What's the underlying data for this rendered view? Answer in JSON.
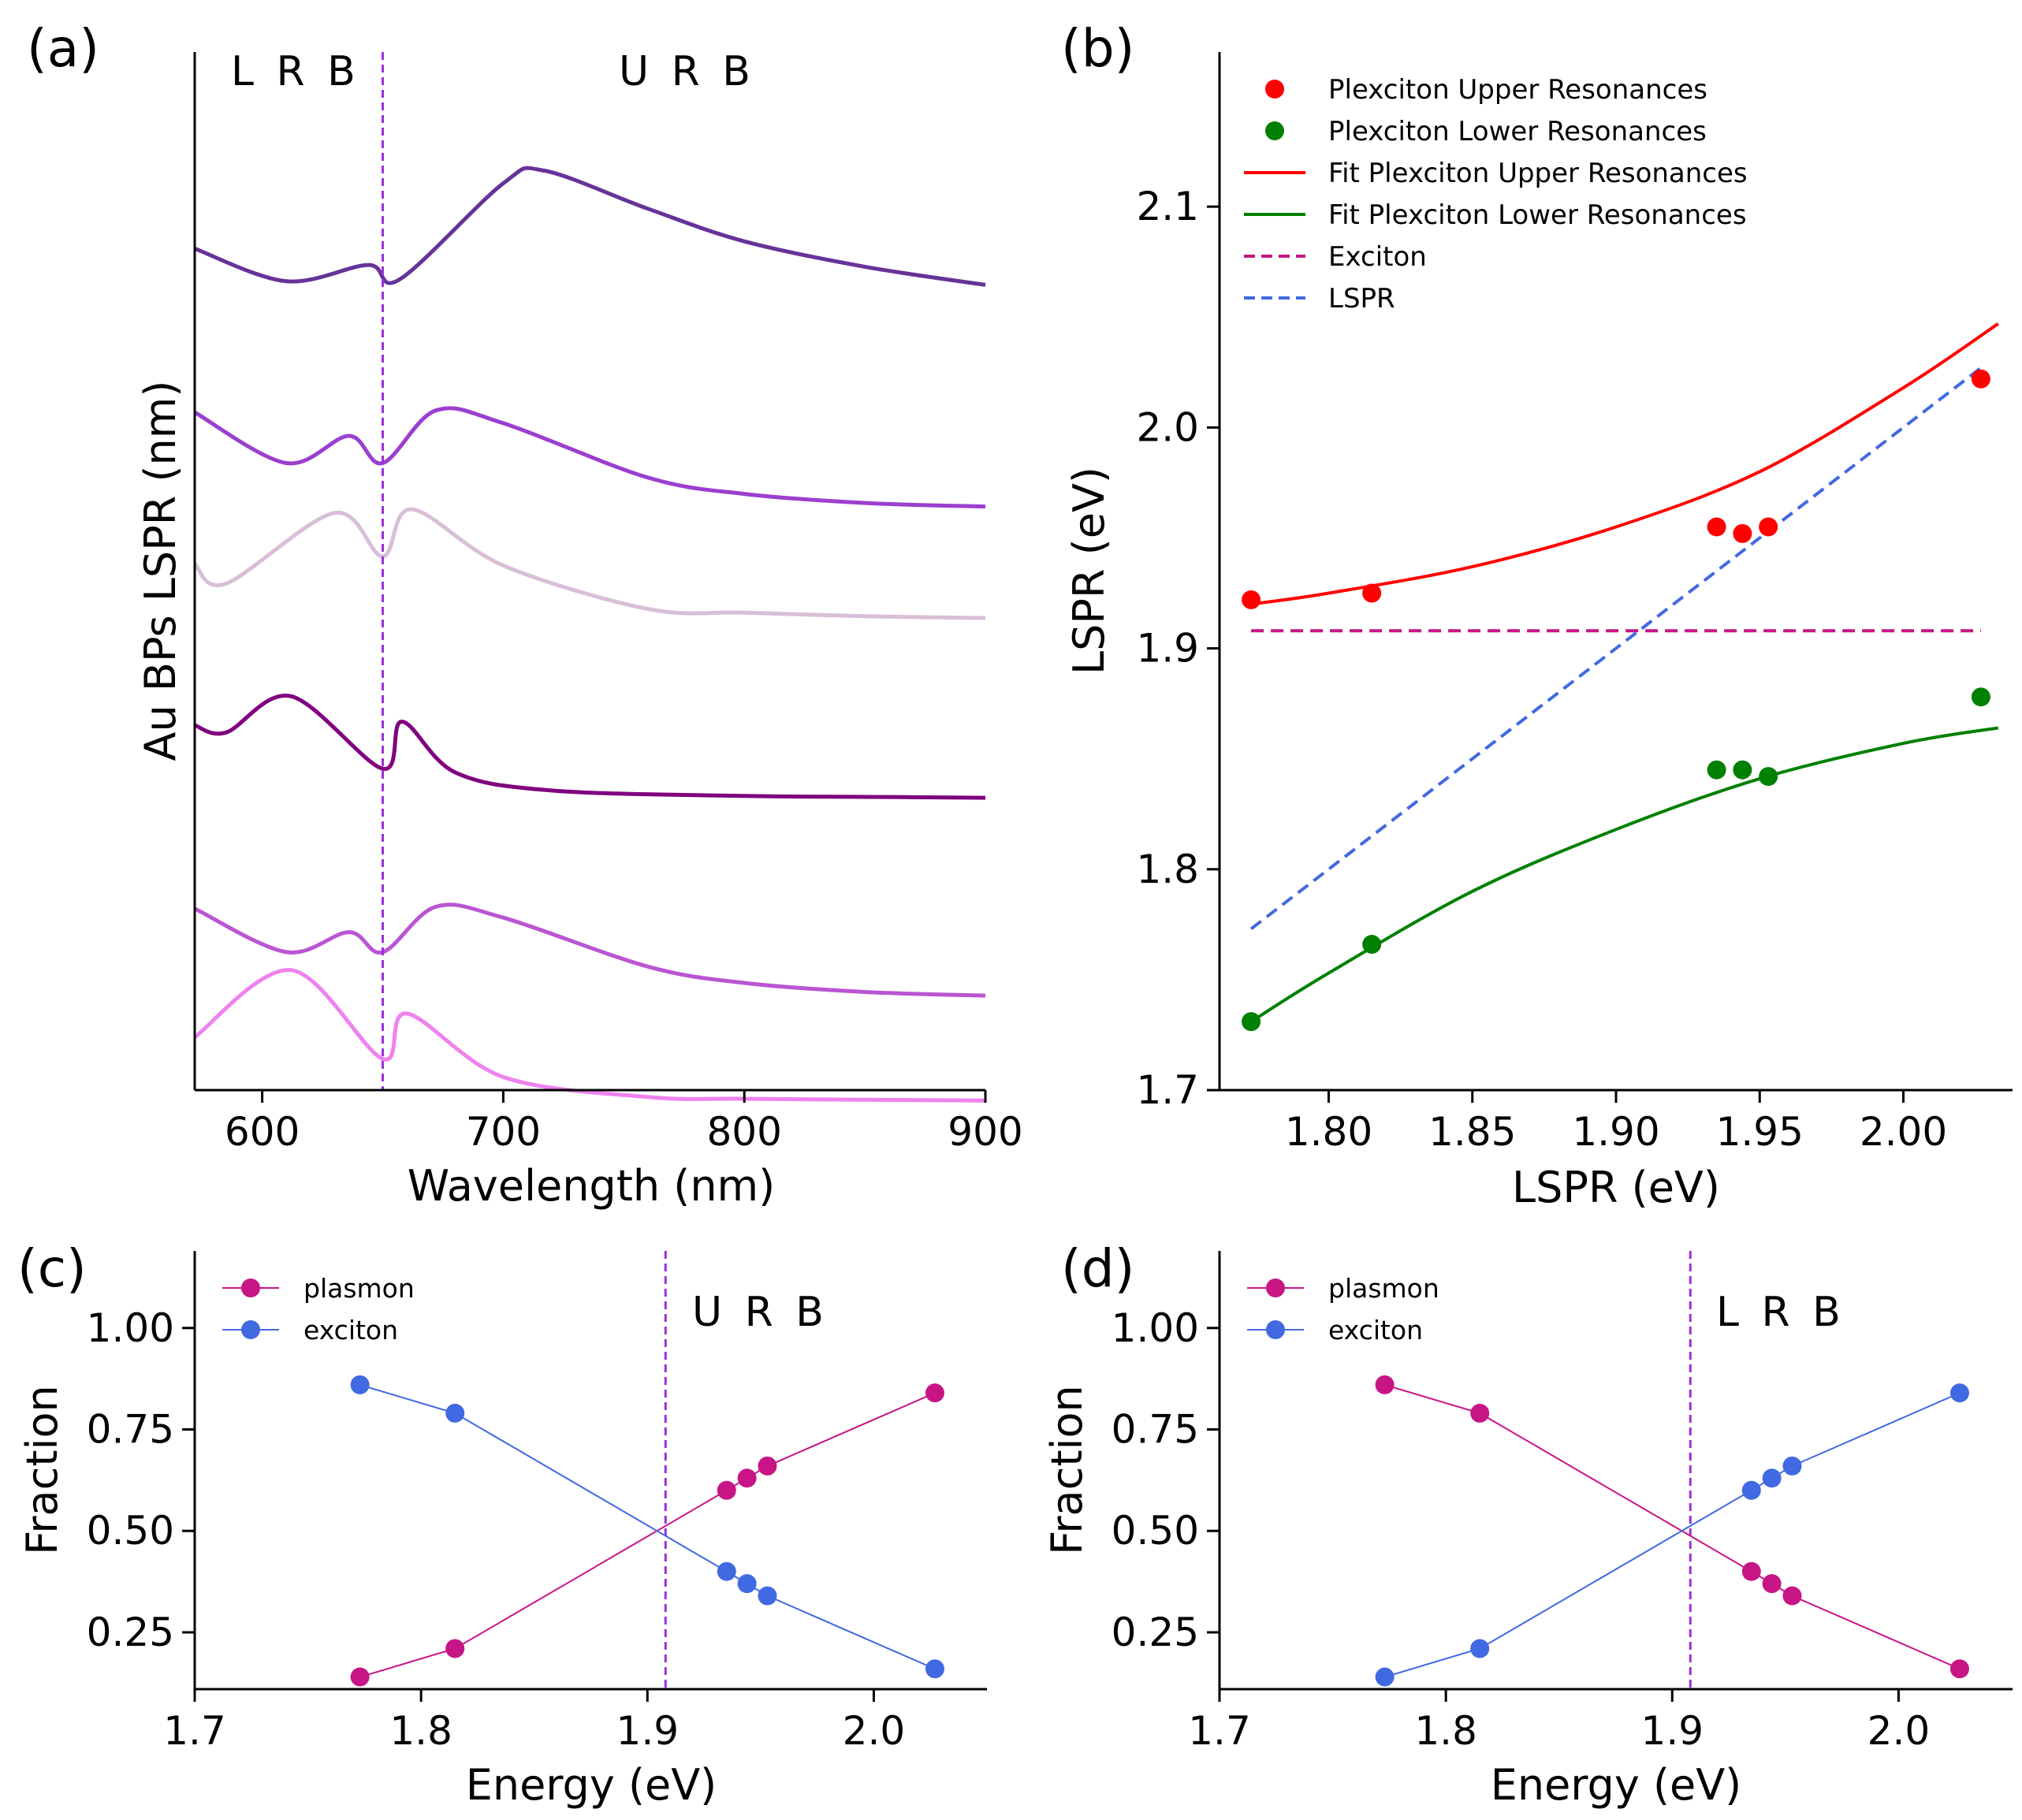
{
  "panels": {
    "a": {
      "label": "(a)",
      "region_labels": [
        "L R B",
        "U R B"
      ],
      "xlabel": "Wavelength (nm)",
      "ylabel": "Au BPs LSPR (nm)",
      "xlim": [
        572,
        900
      ],
      "xticks": [
        "600",
        "700",
        "800",
        "900"
      ],
      "exciton_line_nm": 650,
      "colors": {
        "exciton_line": "#9b30d9"
      }
    },
    "b": {
      "label": "(b)",
      "xlabel": "LSPR (eV)",
      "ylabel": "LSPR (eV)",
      "xticks": [
        "1.80",
        "1.85",
        "1.90",
        "1.95",
        "2.00"
      ],
      "yticks": [
        "1.7",
        "1.8",
        "1.9",
        "2.0",
        "2.1"
      ],
      "legend": [
        "Plexciton Upper Resonances",
        "Plexciton Lower Resonances",
        "Fit Plexciton Upper Resonances",
        "Fit Plexciton Lower Resonances",
        "Exciton",
        "LSPR"
      ]
    },
    "c": {
      "label": "(c)",
      "region_label": "U R B",
      "xlabel": "Energy (eV)",
      "ylabel": "Fraction",
      "xticks": [
        "1.7",
        "1.8",
        "1.9",
        "2.0"
      ],
      "yticks": [
        "0.25",
        "0.50",
        "0.75",
        "1.00"
      ],
      "legend": [
        "plasmon",
        "exciton"
      ]
    },
    "d": {
      "label": "(d)",
      "region_label": "L R B",
      "xlabel": "Energy (eV)",
      "ylabel": "Fraction",
      "xticks": [
        "1.7",
        "1.8",
        "1.9",
        "2.0"
      ],
      "yticks": [
        "0.25",
        "0.50",
        "0.75",
        "1.00"
      ],
      "legend": [
        "plasmon",
        "exciton"
      ]
    }
  },
  "chart_data": [
    {
      "panel": "a",
      "type": "line",
      "title": "",
      "xlabel": "Wavelength (nm)",
      "ylabel": "Au BPs LSPR (nm)",
      "xlim": [
        572,
        900
      ],
      "y_ticks_shown": false,
      "exciton_dip_nm": 650,
      "series": [
        {
          "name": "spectrum 1 (top)",
          "color": "#663399",
          "x": [
            572,
            610,
            644,
            657,
            700,
            717,
            760,
            800,
            850,
            900
          ],
          "y": [
            0.82,
            0.64,
            0.73,
            0.65,
            1.18,
            1.25,
            1.04,
            0.86,
            0.72,
            0.62
          ]
        },
        {
          "name": "spectrum 2",
          "color": "#9b3fd0",
          "x": [
            572,
            610,
            636,
            650,
            672,
            700,
            760,
            800,
            850,
            900
          ],
          "y": [
            0.83,
            0.55,
            0.7,
            0.55,
            0.84,
            0.77,
            0.47,
            0.38,
            0.33,
            0.31
          ]
        },
        {
          "name": "spectrum 3",
          "color": "#d8bfd8",
          "x": [
            572,
            585,
            630,
            650,
            662,
            700,
            760,
            800,
            850,
            900
          ],
          "y": [
            0.93,
            0.82,
            1.21,
            0.97,
            1.23,
            0.92,
            0.68,
            0.66,
            0.64,
            0.63
          ]
        },
        {
          "name": "spectrum 4",
          "color": "#800080",
          "x": [
            572,
            585,
            612,
            650,
            658,
            680,
            720,
            800,
            850,
            900
          ],
          "y": [
            0.93,
            0.89,
            1.09,
            0.69,
            0.95,
            0.67,
            0.57,
            0.54,
            0.535,
            0.53
          ]
        },
        {
          "name": "spectrum 5",
          "color": "#ba55d3",
          "x": [
            572,
            610,
            636,
            650,
            672,
            700,
            760,
            800,
            850,
            900
          ],
          "y": [
            0.81,
            0.57,
            0.68,
            0.57,
            0.82,
            0.76,
            0.49,
            0.4,
            0.35,
            0.33
          ]
        },
        {
          "name": "spectrum 6 (bottom)",
          "color": "#ee82ee",
          "x": [
            572,
            612,
            650,
            660,
            700,
            760,
            800,
            850,
            900
          ],
          "y": [
            0.84,
            1.21,
            0.72,
            0.97,
            0.62,
            0.51,
            0.5,
            0.495,
            0.49
          ]
        }
      ]
    },
    {
      "panel": "b",
      "type": "scatter",
      "title": "",
      "xlabel": "LSPR (eV)",
      "ylabel": "LSPR (eV)",
      "xlim": [
        1.762,
        2.038
      ],
      "ylim": [
        1.7,
        2.17
      ],
      "series": [
        {
          "name": "Plexciton Upper Resonances",
          "kind": "scatter",
          "color": "#ff0000",
          "x": [
            1.773,
            1.815,
            1.935,
            1.944,
            1.953,
            2.027
          ],
          "y": [
            1.922,
            1.925,
            1.955,
            1.952,
            1.955,
            2.022
          ]
        },
        {
          "name": "Plexciton Lower Resonances",
          "kind": "scatter",
          "color": "#008000",
          "x": [
            1.773,
            1.815,
            1.935,
            1.944,
            1.953,
            2.027
          ],
          "y": [
            1.731,
            1.766,
            1.845,
            1.845,
            1.842,
            1.878
          ]
        },
        {
          "name": "Fit Plexciton Upper Resonances",
          "kind": "line",
          "color": "#ff0000",
          "x": [
            1.773,
            1.8,
            1.85,
            1.9,
            1.95,
            2.0,
            2.033
          ],
          "y": [
            1.92,
            1.925,
            1.937,
            1.955,
            1.98,
            2.018,
            2.047
          ]
        },
        {
          "name": "Fit Plexciton Lower Resonances",
          "kind": "line",
          "color": "#008000",
          "x": [
            1.773,
            1.8,
            1.85,
            1.9,
            1.95,
            2.0,
            2.033
          ],
          "y": [
            1.731,
            1.753,
            1.79,
            1.818,
            1.841,
            1.857,
            1.864
          ]
        },
        {
          "name": "Exciton",
          "kind": "dashed",
          "color": "#c71585",
          "x": [
            1.773,
            2.027
          ],
          "y": [
            1.908,
            1.908
          ]
        },
        {
          "name": "LSPR",
          "kind": "dashed",
          "color": "#4169e1",
          "x": [
            1.773,
            2.027
          ],
          "y": [
            1.773,
            2.027
          ]
        }
      ]
    },
    {
      "panel": "c",
      "type": "line",
      "title": "",
      "xlabel": "Energy (eV)",
      "ylabel": "Fraction",
      "xlim": [
        1.7,
        2.05
      ],
      "ylim": [
        0.11,
        1.19
      ],
      "vline_x": 1.908,
      "x": [
        1.773,
        1.815,
        1.935,
        1.944,
        1.953,
        2.027
      ],
      "series": [
        {
          "name": "plasmon",
          "color": "#c71585",
          "values": [
            0.14,
            0.21,
            0.6,
            0.63,
            0.66,
            0.84
          ]
        },
        {
          "name": "exciton",
          "color": "#4169e1",
          "values": [
            0.86,
            0.79,
            0.4,
            0.37,
            0.34,
            0.16
          ]
        }
      ]
    },
    {
      "panel": "d",
      "type": "line",
      "title": "",
      "xlabel": "Energy (eV)",
      "ylabel": "Fraction",
      "xlim": [
        1.7,
        2.05
      ],
      "ylim": [
        0.11,
        1.19
      ],
      "vline_x": 1.908,
      "x": [
        1.773,
        1.815,
        1.935,
        1.944,
        1.953,
        2.027
      ],
      "series": [
        {
          "name": "plasmon",
          "color": "#c71585",
          "values": [
            0.86,
            0.79,
            0.4,
            0.37,
            0.34,
            0.16
          ]
        },
        {
          "name": "exciton",
          "color": "#4169e1",
          "values": [
            0.14,
            0.21,
            0.6,
            0.63,
            0.66,
            0.84
          ]
        }
      ]
    }
  ]
}
